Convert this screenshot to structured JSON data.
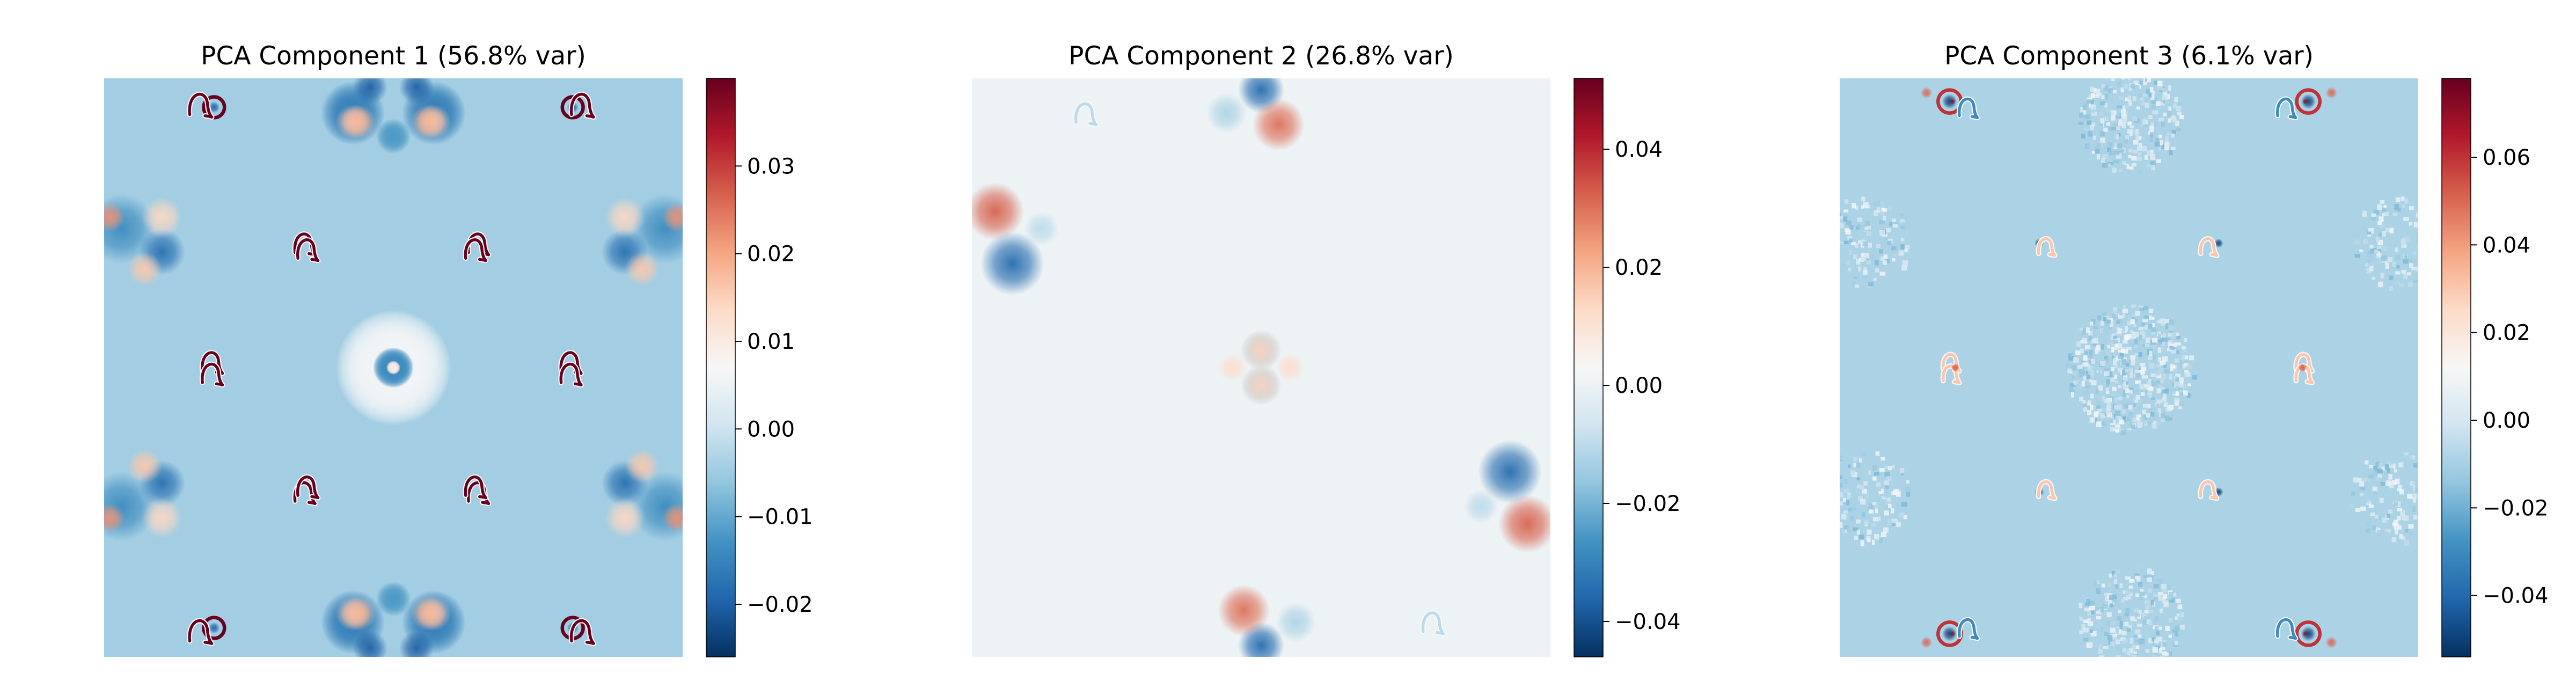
{
  "figure": {
    "colormap": "RdBu_r",
    "background": "#ffffff",
    "colormap_stops": [
      "#053061",
      "#2166ac",
      "#4393c3",
      "#92c5de",
      "#d1e5f0",
      "#f7f7f7",
      "#fddbc7",
      "#f4a582",
      "#d6604d",
      "#b2182b",
      "#67001f"
    ]
  },
  "chart_data": [
    {
      "type": "heatmap",
      "title": "PCA Component 1 (56.8% var)",
      "xlabel": "",
      "ylabel": "",
      "axes_visible": false,
      "background_value": -0.0045,
      "colorbar": {
        "vmin": -0.026,
        "vmax": 0.04,
        "ticks": [
          0.03,
          0.02,
          0.01,
          0.0,
          -0.01,
          -0.02
        ],
        "tick_labels": [
          "0.03",
          "0.02",
          "0.01",
          "0.00",
          "−0.01",
          "−0.02"
        ]
      },
      "symmetry": "4-fold mirror",
      "features": [
        {
          "type": "blob",
          "u": 0.5,
          "v": 0.5,
          "r": 0.1,
          "value": 0.006
        },
        {
          "type": "blob",
          "u": 0.5,
          "v": 0.5,
          "r": 0.035,
          "value": -0.014
        },
        {
          "type": "blob",
          "u": 0.5,
          "v": 0.5,
          "r": 0.012,
          "value": 0.01
        },
        {
          "type": "blob",
          "u": 0.43,
          "v": 0.06,
          "r": 0.055,
          "value": -0.016
        },
        {
          "type": "blob",
          "u": 0.57,
          "v": 0.06,
          "r": 0.055,
          "value": -0.016
        },
        {
          "type": "blob",
          "u": 0.43,
          "v": 0.075,
          "r": 0.03,
          "value": 0.016
        },
        {
          "type": "blob",
          "u": 0.56,
          "v": 0.075,
          "r": 0.03,
          "value": 0.018
        },
        {
          "type": "blob",
          "u": 0.46,
          "v": 0.015,
          "r": 0.03,
          "value": -0.02
        },
        {
          "type": "blob",
          "u": 0.5,
          "v": 0.1,
          "r": 0.03,
          "value": -0.012
        },
        {
          "type": "blob",
          "u": 0.03,
          "v": 0.26,
          "r": 0.06,
          "value": -0.014
        },
        {
          "type": "blob",
          "u": 0.1,
          "v": 0.3,
          "r": 0.04,
          "value": -0.018
        },
        {
          "type": "blob",
          "u": 0.1,
          "v": 0.24,
          "r": 0.035,
          "value": 0.014
        },
        {
          "type": "blob",
          "u": 0.01,
          "v": 0.24,
          "r": 0.025,
          "value": 0.022
        },
        {
          "type": "blob",
          "u": 0.07,
          "v": 0.33,
          "r": 0.03,
          "value": 0.016
        },
        {
          "type": "ring",
          "u": 0.19,
          "v": 0.05,
          "r": 0.018,
          "value": 0.045
        },
        {
          "type": "blob",
          "u": 0.19,
          "v": 0.05,
          "r": 0.01,
          "value": -0.02
        },
        {
          "type": "loop",
          "u": 0.17,
          "v": 0.045,
          "r": 0.022,
          "value": 0.045
        },
        {
          "type": "loop",
          "u": 0.35,
          "v": 0.285,
          "r": 0.02,
          "value": 0.045
        },
        {
          "type": "loop",
          "u": 0.19,
          "v": 0.49,
          "r": 0.02,
          "value": 0.045
        },
        {
          "type": "loop",
          "u": 0.355,
          "v": 0.705,
          "r": 0.02,
          "value": 0.045
        }
      ]
    },
    {
      "type": "heatmap",
      "title": "PCA Component 2 (26.8% var)",
      "xlabel": "",
      "ylabel": "",
      "axes_visible": false,
      "background_value": 0.0005,
      "colorbar": {
        "vmin": -0.046,
        "vmax": 0.052,
        "ticks": [
          0.04,
          0.02,
          0.0,
          -0.02,
          -0.04
        ],
        "tick_labels": [
          "0.04",
          "0.02",
          "0.00",
          "−0.02",
          "−0.04"
        ]
      },
      "symmetry": "2-fold rotation",
      "features": [
        {
          "type": "blob",
          "u": 0.5,
          "v": 0.02,
          "r": 0.04,
          "value": -0.035
        },
        {
          "type": "blob",
          "u": 0.53,
          "v": 0.08,
          "r": 0.045,
          "value": 0.03
        },
        {
          "type": "blob",
          "u": 0.44,
          "v": 0.06,
          "r": 0.035,
          "value": -0.012
        },
        {
          "type": "blob",
          "u": 0.04,
          "v": 0.23,
          "r": 0.05,
          "value": 0.032
        },
        {
          "type": "blob",
          "u": 0.07,
          "v": 0.32,
          "r": 0.055,
          "value": -0.035
        },
        {
          "type": "blob",
          "u": 0.12,
          "v": 0.26,
          "r": 0.03,
          "value": -0.01
        },
        {
          "type": "blob",
          "u": 0.5,
          "v": 0.47,
          "r": 0.035,
          "value": -0.016
        },
        {
          "type": "blob",
          "u": 0.5,
          "v": 0.53,
          "r": 0.035,
          "value": 0.014
        },
        {
          "type": "blob",
          "u": 0.45,
          "v": 0.5,
          "r": 0.025,
          "value": 0.012
        },
        {
          "type": "loop",
          "u": 0.2,
          "v": 0.06,
          "r": 0.02,
          "value": -0.01
        }
      ]
    },
    {
      "type": "heatmap",
      "title": "PCA Component 3 (6.1% var)",
      "xlabel": "",
      "ylabel": "",
      "axes_visible": false,
      "background_value": -0.009,
      "colorbar": {
        "vmin": -0.054,
        "vmax": 0.078,
        "ticks": [
          0.06,
          0.04,
          0.02,
          0.0,
          -0.02,
          -0.04
        ],
        "tick_labels": [
          "0.06",
          "0.04",
          "0.02",
          "0.00",
          "−0.02",
          "−0.04"
        ]
      },
      "symmetry": "4-fold mirror",
      "features": [
        {
          "type": "noise",
          "u": 0.5,
          "v": 0.5,
          "r": 0.11,
          "value": 0.006
        },
        {
          "type": "noise",
          "u": 0.5,
          "v": 0.07,
          "r": 0.09,
          "value": 0.006
        },
        {
          "type": "noise",
          "u": 0.04,
          "v": 0.28,
          "r": 0.08,
          "value": 0.006
        },
        {
          "type": "blob",
          "u": 0.19,
          "v": 0.04,
          "r": 0.013,
          "value": -0.05
        },
        {
          "type": "blob",
          "u": 0.195,
          "v": 0.04,
          "r": 0.005,
          "value": 0.07
        },
        {
          "type": "blob",
          "u": 0.15,
          "v": 0.025,
          "r": 0.01,
          "value": 0.05
        },
        {
          "type": "ring",
          "u": 0.19,
          "v": 0.04,
          "r": 0.02,
          "value": 0.06
        },
        {
          "type": "loop",
          "u": 0.225,
          "v": 0.05,
          "r": 0.018,
          "value": -0.03
        },
        {
          "type": "blob",
          "u": 0.345,
          "v": 0.285,
          "r": 0.008,
          "value": -0.05
        },
        {
          "type": "loop",
          "u": 0.36,
          "v": 0.29,
          "r": 0.016,
          "value": 0.03
        },
        {
          "type": "loop",
          "u": 0.195,
          "v": 0.49,
          "r": 0.016,
          "value": 0.03
        },
        {
          "type": "blob",
          "u": 0.2,
          "v": 0.5,
          "r": 0.007,
          "value": 0.05
        }
      ]
    }
  ]
}
